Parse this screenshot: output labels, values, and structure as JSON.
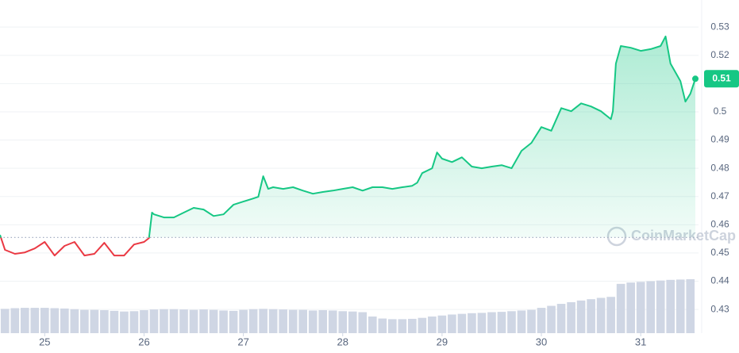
{
  "chart_data": {
    "type": "price-line",
    "watermark": "CoinMarketCap",
    "line_color_up": "#16c784",
    "line_color_down": "#ea3943",
    "volume_color": "#cfd6e4",
    "baseline": 0.4555,
    "current_price": {
      "value": 0.5117,
      "label": "0.51"
    },
    "xlim": [
      24.55,
      31.55
    ],
    "xticks": [
      25,
      26,
      27,
      28,
      29,
      30,
      31
    ],
    "ylim": [
      0.4216,
      0.5396
    ],
    "yticks": [
      0.43,
      0.44,
      0.45,
      0.46,
      0.47,
      0.48,
      0.49,
      0.5,
      0.51,
      0.52,
      0.53
    ],
    "grid": true,
    "x": [
      24.55,
      24.6,
      24.7,
      24.8,
      24.9,
      25.0,
      25.1,
      25.2,
      25.3,
      25.4,
      25.5,
      25.6,
      25.7,
      25.8,
      25.9,
      26.0,
      26.05,
      26.08,
      26.1,
      26.2,
      26.3,
      26.4,
      26.5,
      26.6,
      26.7,
      26.8,
      26.9,
      27.0,
      27.1,
      27.15,
      27.2,
      27.25,
      27.3,
      27.4,
      27.5,
      27.6,
      27.7,
      27.8,
      27.9,
      28.0,
      28.1,
      28.2,
      28.3,
      28.4,
      28.5,
      28.6,
      28.7,
      28.75,
      28.8,
      28.9,
      28.95,
      29.0,
      29.1,
      29.2,
      29.3,
      29.4,
      29.5,
      29.6,
      29.7,
      29.8,
      29.9,
      30.0,
      30.1,
      30.2,
      30.3,
      30.4,
      30.5,
      30.6,
      30.7,
      30.72,
      30.75,
      30.8,
      30.9,
      31.0,
      31.1,
      31.2,
      31.25,
      31.3,
      31.4,
      31.45,
      31.5,
      31.55
    ],
    "values": [
      0.4564,
      0.4511,
      0.4497,
      0.4502,
      0.4516,
      0.4539,
      0.4491,
      0.4525,
      0.4539,
      0.4491,
      0.4497,
      0.4536,
      0.4491,
      0.4491,
      0.453,
      0.4539,
      0.4553,
      0.4643,
      0.4637,
      0.4626,
      0.4626,
      0.4643,
      0.466,
      0.4654,
      0.4631,
      0.4637,
      0.4671,
      0.4682,
      0.4693,
      0.4699,
      0.4772,
      0.4727,
      0.4733,
      0.4727,
      0.4733,
      0.4721,
      0.471,
      0.4716,
      0.4721,
      0.4727,
      0.4733,
      0.4721,
      0.4733,
      0.4733,
      0.4727,
      0.4733,
      0.4738,
      0.4749,
      0.4783,
      0.48,
      0.4856,
      0.4834,
      0.4822,
      0.4839,
      0.4806,
      0.48,
      0.4806,
      0.4811,
      0.48,
      0.4862,
      0.489,
      0.4946,
      0.4933,
      0.5013,
      0.5002,
      0.503,
      0.5019,
      0.5002,
      0.4974,
      0.5002,
      0.5171,
      0.5233,
      0.5227,
      0.5216,
      0.5222,
      0.5233,
      0.5267,
      0.5171,
      0.5109,
      0.5036,
      0.5064,
      0.5117
    ],
    "volume": {
      "y2lim": [
        0,
        100
      ],
      "x": [
        24.6,
        24.7,
        24.8,
        24.9,
        25.0,
        25.1,
        25.2,
        25.3,
        25.4,
        25.5,
        25.6,
        25.7,
        25.8,
        25.9,
        26.0,
        26.1,
        26.2,
        26.3,
        26.4,
        26.5,
        26.6,
        26.7,
        26.8,
        26.9,
        27.0,
        27.1,
        27.2,
        27.3,
        27.4,
        27.5,
        27.6,
        27.7,
        27.8,
        27.9,
        28.0,
        28.1,
        28.2,
        28.3,
        28.4,
        28.5,
        28.6,
        28.7,
        28.8,
        28.9,
        29.0,
        29.1,
        29.2,
        29.3,
        29.4,
        29.5,
        29.6,
        29.7,
        29.8,
        29.9,
        30.0,
        30.1,
        30.2,
        30.3,
        30.4,
        30.5,
        30.6,
        30.7,
        30.8,
        30.9,
        31.0,
        31.1,
        31.2,
        31.3,
        31.4,
        31.5
      ],
      "values": [
        7.3,
        7.5,
        7.6,
        7.6,
        7.6,
        7.5,
        7.4,
        7.2,
        7.0,
        7.0,
        6.9,
        6.7,
        6.5,
        6.6,
        6.9,
        7.1,
        7.2,
        7.2,
        7.1,
        7.0,
        7.1,
        7.0,
        6.8,
        6.7,
        7.0,
        7.2,
        7.3,
        7.2,
        7.1,
        7.0,
        7.0,
        6.8,
        6.9,
        6.8,
        6.6,
        6.5,
        6.3,
        5.0,
        4.4,
        4.2,
        4.2,
        4.3,
        4.6,
        5.0,
        5.3,
        5.6,
        5.8,
        6.0,
        6.1,
        6.3,
        6.4,
        6.6,
        6.8,
        7.0,
        7.6,
        8.2,
        8.8,
        9.3,
        9.8,
        10.2,
        10.6,
        10.9,
        14.8,
        15.2,
        15.4,
        15.6,
        15.8,
        16.0,
        16.1,
        16.2
      ]
    }
  }
}
